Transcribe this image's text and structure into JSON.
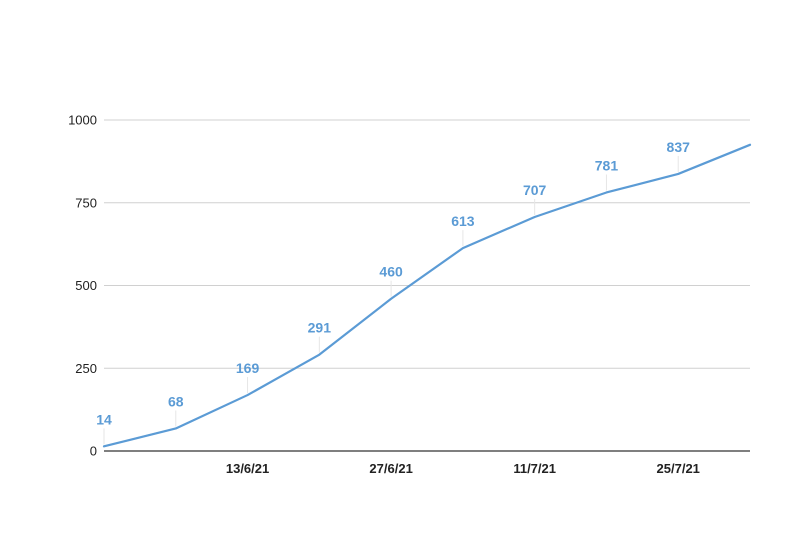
{
  "chart_data": {
    "type": "line",
    "title": "",
    "xlabel": "",
    "ylabel": "",
    "x_tick_labels": [
      "13/6/21",
      "27/6/21",
      "11/7/21",
      "25/7/21"
    ],
    "y_tick_labels": [
      "0",
      "250",
      "500",
      "750",
      "1000"
    ],
    "ylim": [
      0,
      1000
    ],
    "grid": true,
    "legend": "none",
    "series": [
      {
        "color": "#5b9bd5",
        "points": [
          {
            "x": "2021-05-30",
            "y": 14,
            "label": "14"
          },
          {
            "x": "2021-06-06",
            "y": 68,
            "label": "68"
          },
          {
            "x": "2021-06-13",
            "y": 169,
            "label": "169"
          },
          {
            "x": "2021-06-20",
            "y": 291,
            "label": "291"
          },
          {
            "x": "2021-06-27",
            "y": 460,
            "label": "460"
          },
          {
            "x": "2021-07-04",
            "y": 613,
            "label": "613"
          },
          {
            "x": "2021-07-11",
            "y": 707,
            "label": "707"
          },
          {
            "x": "2021-07-18",
            "y": 781,
            "label": "781"
          },
          {
            "x": "2021-07-25",
            "y": 837,
            "label": "837"
          },
          {
            "x": "2021-08-01",
            "y": 925,
            "label": ""
          }
        ]
      }
    ]
  }
}
